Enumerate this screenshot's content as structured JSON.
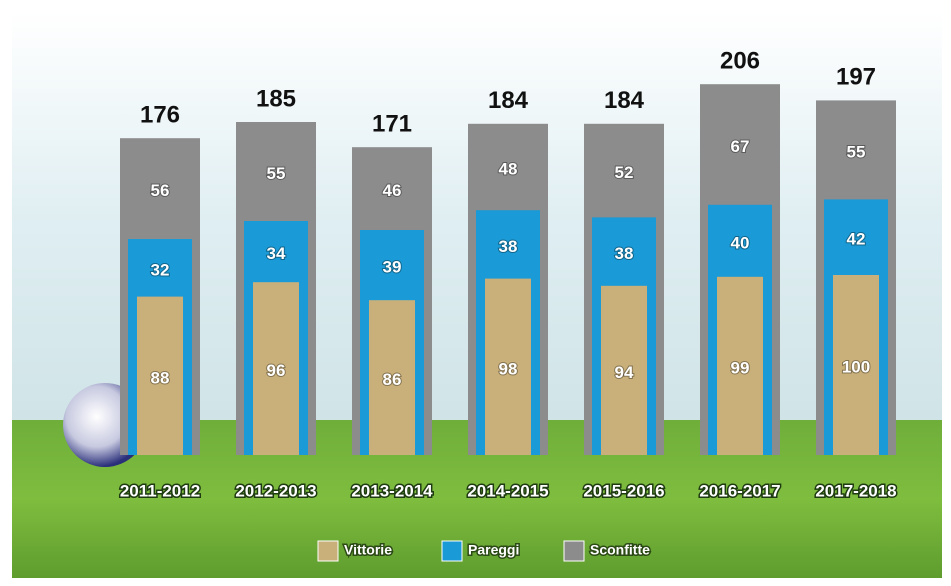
{
  "chart_data": {
    "type": "stacked_bar",
    "categories": [
      "2011-2012",
      "2012-2013",
      "2013-2014",
      "2014-2015",
      "2015-2016",
      "2016-2017",
      "2017-2018"
    ],
    "series": [
      {
        "name": "Vittorie",
        "color": "#c9b07a",
        "values": [
          88,
          96,
          86,
          98,
          94,
          99,
          100
        ]
      },
      {
        "name": "Pareggi",
        "color": "#1a9ad6",
        "values": [
          32,
          34,
          39,
          38,
          38,
          40,
          42
        ]
      },
      {
        "name": "Sconfitte",
        "color": "#8c8c8c",
        "values": [
          56,
          55,
          46,
          48,
          52,
          67,
          55
        ]
      }
    ],
    "totals": [
      176,
      185,
      171,
      184,
      184,
      206,
      197
    ]
  }
}
